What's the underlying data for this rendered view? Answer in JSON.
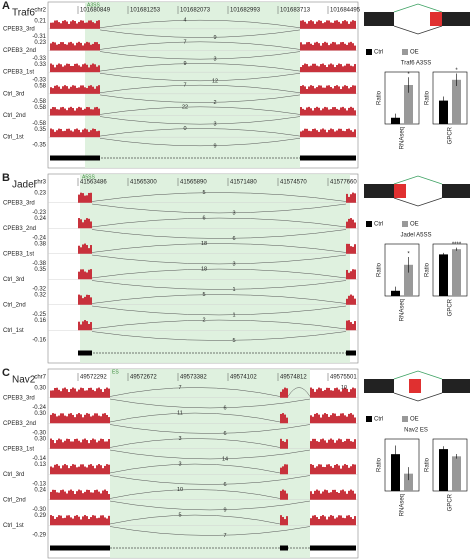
{
  "panels": [
    {
      "label": "A",
      "gene": "Traf6",
      "chrom": "chr2",
      "event": "A3SS",
      "coords": [
        "101680849",
        "101681253",
        "101682073",
        "101682993",
        "101683713",
        "101684495"
      ],
      "tracks": [
        {
          "name": "CPEB3_3rd",
          "max": "0.21",
          "min": "-0.31",
          "junctions": [
            "4",
            "9"
          ]
        },
        {
          "name": "CPEB3_2nd",
          "max": "0.23",
          "min": "-0.33",
          "junctions": [
            "7",
            "3"
          ]
        },
        {
          "name": "CPEB3_1st",
          "max": "0.33",
          "min": "-0.33",
          "junctions": [
            "9",
            "12"
          ]
        },
        {
          "name": "Ctrl_3rd",
          "max": "0.58",
          "min": "-0.58",
          "junctions": [
            "7",
            "2"
          ]
        },
        {
          "name": "Ctrl_2nd",
          "max": "0.58",
          "min": "-0.58",
          "junctions": [
            "22",
            "3"
          ]
        },
        {
          "name": "Ctrl_1st",
          "max": "0.35",
          "min": "-0.35",
          "junctions": [
            "0",
            "9"
          ]
        }
      ],
      "bars": {
        "title": "Traf6 A3SS",
        "legend": [
          "Ctrl",
          "OE"
        ],
        "colors": [
          "#000000",
          "#999999"
        ],
        "charts": [
          {
            "type": "bar",
            "xlabel": "RNAseq",
            "ylabel": "Ratio",
            "ylim": [
              0,
              1
            ],
            "values": [
              0.12,
              0.75
            ],
            "errors": [
              0.08,
              0.15
            ],
            "annotation": "*"
          },
          {
            "type": "bar",
            "xlabel": "GPCR",
            "ylabel": "Ratio",
            "ylim": [
              0,
              0.1
            ],
            "values": [
              0.045,
              0.085
            ],
            "errors": [
              0.008,
              0.012
            ],
            "annotation": "*"
          }
        ]
      }
    },
    {
      "label": "B",
      "gene": "Jadel",
      "chrom": "chr3",
      "event": "A5SS",
      "coords": [
        "41563486",
        "41565300",
        "41565890",
        "41571480",
        "41574570",
        "41577660"
      ],
      "tracks": [
        {
          "name": "CPEB3_3rd",
          "max": "0.23",
          "min": "-0.23",
          "junctions": [
            "5",
            "3"
          ]
        },
        {
          "name": "CPEB3_2nd",
          "max": "0.24",
          "min": "-0.24",
          "junctions": [
            "6",
            "6"
          ]
        },
        {
          "name": "CPEB3_1st",
          "max": "0.38",
          "min": "-0.38",
          "junctions": [
            "18",
            "3"
          ]
        },
        {
          "name": "Ctrl_3rd",
          "max": "0.35",
          "min": "-0.32",
          "junctions": [
            "18",
            "1"
          ]
        },
        {
          "name": "Ctrl_2nd",
          "max": "0.32",
          "min": "-0.25",
          "junctions": [
            "5",
            "1"
          ]
        },
        {
          "name": "Ctrl_1st",
          "max": "0.16",
          "min": "-0.16",
          "junctions": [
            "2",
            "5"
          ]
        }
      ],
      "bars": {
        "title": "Jadel A5SS",
        "legend": [
          "Ctrl",
          "OE"
        ],
        "colors": [
          "#000000",
          "#999999"
        ],
        "charts": [
          {
            "type": "bar",
            "xlabel": "RNAseq",
            "ylabel": "Ratio",
            "ylim": [
              0,
              1
            ],
            "values": [
              0.1,
              0.6
            ],
            "errors": [
              0.08,
              0.15
            ],
            "annotation": "*"
          },
          {
            "type": "bar",
            "xlabel": "GPCR",
            "ylabel": "Ratio",
            "ylim": [
              0,
              1
            ],
            "values": [
              0.8,
              0.9
            ],
            "errors": [
              0.03,
              0.03
            ],
            "annotation": "****"
          }
        ]
      }
    },
    {
      "label": "C",
      "gene": "Nav2",
      "chrom": "chr7",
      "event": "ES",
      "coords": [
        "49572292",
        "49572672",
        "49573382",
        "49574102",
        "49574812",
        "49575501"
      ],
      "tracks": [
        {
          "name": "CPEB3_3rd",
          "max": "0.30",
          "min": "-0.24",
          "junctions": [
            "7",
            "6",
            "10"
          ]
        },
        {
          "name": "CPEB3_2nd",
          "max": "0.30",
          "min": "-0.30",
          "junctions": [
            "11",
            "6"
          ]
        },
        {
          "name": "CPEB3_1st",
          "max": "0.30",
          "min": "-0.14",
          "junctions": [
            "3",
            "14"
          ]
        },
        {
          "name": "Ctrl_3rd",
          "max": "0.13",
          "min": "-0.13",
          "junctions": [
            "3",
            "6"
          ]
        },
        {
          "name": "Ctrl_2nd",
          "max": "0.24",
          "min": "-0.30",
          "junctions": [
            "10",
            "9"
          ]
        },
        {
          "name": "Ctrl_1st",
          "max": "0.29",
          "min": "-0.29",
          "junctions": [
            "5",
            "7"
          ]
        }
      ],
      "bars": {
        "title": "Nav2 ES",
        "legend": [
          "Ctrl",
          "OE"
        ],
        "colors": [
          "#000000",
          "#999999"
        ],
        "charts": [
          {
            "type": "bar",
            "xlabel": "RNAseq",
            "ylabel": "Ratio",
            "ylim": [
              0,
              1.2
            ],
            "values": [
              0.85,
              0.4
            ],
            "errors": [
              0.2,
              0.15
            ]
          },
          {
            "type": "bar",
            "xlabel": "GPCR",
            "ylabel": "Ratio",
            "ylim": [
              0,
              1.8
            ],
            "values": [
              1.45,
              1.2
            ],
            "errors": [
              0.1,
              0.08
            ]
          }
        ]
      }
    }
  ]
}
